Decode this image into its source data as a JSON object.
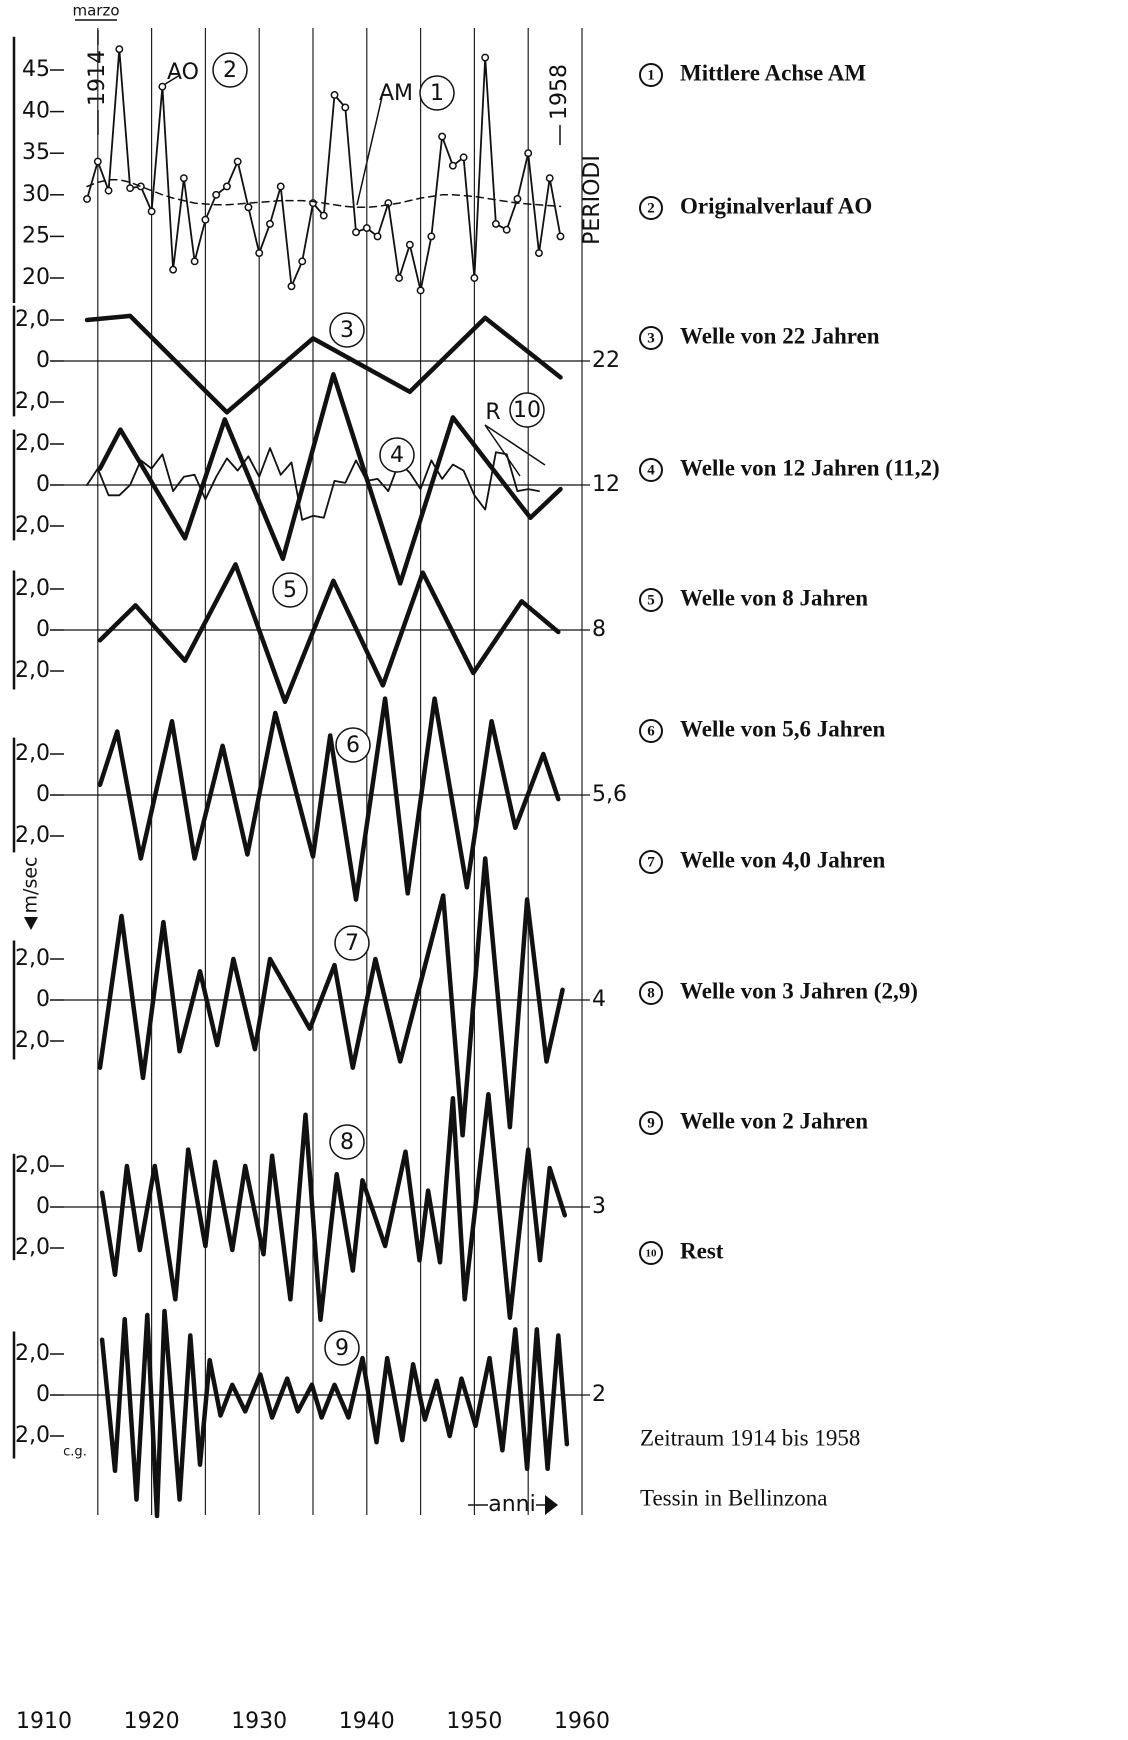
{
  "x_axis": {
    "xlim": [
      1910,
      1960
    ],
    "xticks": [
      1910,
      1920,
      1930,
      1940,
      1950,
      1960
    ],
    "xgrid": [
      1915,
      1920,
      1925,
      1930,
      1935,
      1940,
      1945,
      1950,
      1955,
      1960
    ],
    "label": "anni",
    "y_label": "m/sec",
    "month": "marzo",
    "start": "1914",
    "end": "1958",
    "period_title": "PERIODI",
    "unit_note": "c.g."
  },
  "chart_data": [
    {
      "type": "line",
      "ylim": [
        17,
        49
      ],
      "yticks": [
        20,
        25,
        30,
        35,
        40,
        45
      ],
      "labels": [
        "AO",
        "2",
        "AM",
        "1"
      ],
      "x": [
        1914,
        1915,
        1916,
        1917,
        1918,
        1919,
        1920,
        1921,
        1922,
        1923,
        1924,
        1925,
        1926,
        1927,
        1928,
        1929,
        1930,
        1931,
        1932,
        1933,
        1934,
        1935,
        1936,
        1937,
        1938,
        1939,
        1940,
        1941,
        1942,
        1943,
        1944,
        1945,
        1946,
        1947,
        1948,
        1949,
        1950,
        1951,
        1952,
        1953,
        1954,
        1955,
        1956,
        1957,
        1958
      ],
      "series": [
        {
          "style": "thin",
          "markers": true,
          "color": "#111111",
          "values": [
            29.5,
            34,
            30.5,
            47.5,
            30.8,
            31,
            28,
            43,
            21,
            32,
            22,
            27,
            30,
            31,
            34,
            28.5,
            23,
            26.5,
            31,
            19,
            22,
            29,
            27.5,
            42,
            40.5,
            25.5,
            26,
            25,
            29,
            20,
            24,
            18.5,
            25,
            37,
            33.5,
            34.5,
            20,
            46.5,
            26.5,
            25.8,
            29.5,
            35,
            23,
            32,
            25
          ]
        },
        {
          "style": "dashed",
          "color": "#111111",
          "values": [
            31,
            31.5,
            31.8,
            31.8,
            31.5,
            31,
            30.5,
            30,
            29.6,
            29.3,
            29,
            28.9,
            28.8,
            28.8,
            28.9,
            29,
            29.1,
            29.2,
            29.3,
            29.3,
            29.3,
            29.2,
            29,
            28.8,
            28.6,
            28.5,
            28.5,
            28.6,
            28.8,
            29,
            29.3,
            29.6,
            29.8,
            30,
            30,
            29.9,
            29.8,
            29.6,
            29.4,
            29.2,
            29,
            28.9,
            28.8,
            28.7,
            28.6
          ]
        }
      ]
    },
    {
      "type": "line",
      "ylim": [
        -2.7,
        2.7
      ],
      "yticks": [
        {
          "value": 2,
          "label": "2,0"
        },
        0,
        {
          "value": -2,
          "label": "2,0"
        }
      ],
      "zeroline": true,
      "period": "22",
      "labels": [
        "3"
      ],
      "x": [
        1914,
        1918,
        1927,
        1935,
        1944,
        1951,
        1958
      ],
      "series": [
        {
          "style": "thick",
          "color": "#111111",
          "values": [
            2.0,
            2.2,
            -2.5,
            1.1,
            -1.5,
            2.1,
            -0.8
          ]
        }
      ]
    },
    {
      "type": "line",
      "ylim": [
        -2.7,
        2.7
      ],
      "yticks": [
        {
          "value": 2,
          "label": "2,0"
        },
        0,
        {
          "value": -2,
          "label": "2,0"
        }
      ],
      "zeroline": true,
      "period": "12",
      "labels": [
        "4",
        "R",
        "10"
      ],
      "series": [
        {
          "style": "thick",
          "color": "#111111",
          "x": [
            1915.2,
            1917.1,
            1923.1,
            1926.8,
            1932.2,
            1936.9,
            1943.1,
            1948.0,
            1955.2,
            1958.0
          ],
          "values": [
            0.8,
            2.7,
            -2.6,
            3.2,
            -3.6,
            5.4,
            -4.8,
            3.3,
            -1.6,
            -0.2
          ]
        },
        {
          "style": "thin",
          "color": "#111111",
          "x": [
            1914,
            1915,
            1916,
            1917,
            1918,
            1919,
            1920,
            1921,
            1922,
            1923,
            1924,
            1925,
            1926,
            1927,
            1928,
            1929,
            1930,
            1931,
            1932,
            1933,
            1934,
            1935,
            1936,
            1937,
            1938,
            1939,
            1940,
            1941,
            1942,
            1943,
            1944,
            1945,
            1946,
            1947,
            1948,
            1949,
            1950,
            1951,
            1952,
            1953,
            1954,
            1955,
            1956
          ],
          "values": [
            0,
            0.8,
            -0.5,
            -0.5,
            0,
            1.2,
            0.8,
            1.5,
            -0.3,
            0.4,
            0.5,
            -0.7,
            0.4,
            1.3,
            0.7,
            1.4,
            0.4,
            1.8,
            0.5,
            1.1,
            -1.7,
            -1.5,
            -1.6,
            0.2,
            0.1,
            1.2,
            0.2,
            0.3,
            -0.3,
            1.1,
            0.6,
            -0.2,
            1.2,
            0.3,
            1.0,
            0.7,
            -0.5,
            -1.2,
            1.6,
            1.5,
            -0.3,
            -0.2,
            -0.3
          ]
        }
      ]
    },
    {
      "type": "line",
      "ylim": [
        -2.9,
        2.9
      ],
      "yticks": [
        {
          "value": 2,
          "label": "2,0"
        },
        0,
        {
          "value": -2,
          "label": "2,0"
        }
      ],
      "zeroline": true,
      "period": "8",
      "labels": [
        "5"
      ],
      "x": [
        1915.2,
        1918.5,
        1923.1,
        1927.8,
        1932.4,
        1936.9,
        1941.5,
        1945.2,
        1949.9,
        1954.4,
        1957.8
      ],
      "series": [
        {
          "style": "thick",
          "color": "#111111",
          "values": [
            -0.5,
            1.2,
            -1.5,
            3.2,
            -3.5,
            2.4,
            -2.7,
            2.8,
            -2.1,
            1.4,
            -0.1
          ]
        }
      ]
    },
    {
      "type": "line",
      "ylim": [
        -2.8,
        2.8
      ],
      "yticks": [
        {
          "value": 2,
          "label": "2,0"
        },
        0,
        {
          "value": -2,
          "label": "2,0"
        }
      ],
      "zeroline": true,
      "period": "5,6",
      "labels": [
        "6"
      ],
      "x": [
        1915.2,
        1916.8,
        1919.0,
        1921.9,
        1924.0,
        1926.6,
        1928.9,
        1931.5,
        1935.0,
        1936.6,
        1939.0,
        1941.7,
        1943.8,
        1946.3,
        1949.3,
        1951.6,
        1953.8,
        1956.4,
        1957.8
      ],
      "series": [
        {
          "style": "thick",
          "color": "#111111",
          "values": [
            0.5,
            3.1,
            -3.1,
            3.6,
            -3.1,
            2.4,
            -2.9,
            4.0,
            -3.0,
            2.9,
            -5.1,
            4.7,
            -4.8,
            4.7,
            -4.5,
            3.6,
            -1.6,
            2.0,
            -0.2
          ]
        }
      ]
    },
    {
      "type": "line",
      "ylim": [
        -2.9,
        2.9
      ],
      "yticks": [
        {
          "value": 2,
          "label": "2,0"
        },
        0,
        {
          "value": -2,
          "label": "2,0"
        }
      ],
      "zeroline": true,
      "period": "4",
      "labels": [
        "7"
      ],
      "x": [
        1915.2,
        1917.2,
        1919.2,
        1921.1,
        1922.6,
        1924.5,
        1926.1,
        1927.6,
        1929.6,
        1931.0,
        1934.7,
        1937.0,
        1938.7,
        1940.8,
        1943.1,
        1947.1,
        1948.9,
        1951.0,
        1953.3,
        1954.9,
        1956.7,
        1958.2
      ],
      "series": [
        {
          "style": "thick",
          "color": "#111111",
          "values": [
            -3.3,
            4.1,
            -3.8,
            3.8,
            -2.5,
            1.4,
            -2.2,
            2.0,
            -2.4,
            2.0,
            -1.4,
            1.7,
            -3.3,
            2.0,
            -3.0,
            5.1,
            -6.6,
            6.9,
            -6.2,
            4.9,
            -3.0,
            0.5
          ]
        }
      ]
    },
    {
      "type": "line",
      "ylim": [
        -2.6,
        2.6
      ],
      "yticks": [
        {
          "value": 2,
          "label": "2,0"
        },
        0,
        {
          "value": -2,
          "label": "2,0"
        }
      ],
      "zeroline": true,
      "period": "3",
      "labels": [
        "8"
      ],
      "x": [
        1915.4,
        1916.6,
        1917.7,
        1918.9,
        1920.3,
        1922.2,
        1923.4,
        1925.0,
        1925.9,
        1927.5,
        1928.7,
        1930.4,
        1931.2,
        1932.9,
        1934.3,
        1935.7,
        1937.2,
        1938.7,
        1939.6,
        1941.7,
        1943.6,
        1944.9,
        1945.7,
        1946.8,
        1948.0,
        1949.1,
        1951.3,
        1953.3,
        1955.0,
        1956.1,
        1957.0,
        1958.4
      ],
      "series": [
        {
          "style": "thick",
          "color": "#111111",
          "values": [
            0.7,
            -3.3,
            2.0,
            -2.1,
            2.0,
            -4.5,
            2.8,
            -1.9,
            2.2,
            -2.1,
            2.0,
            -2.3,
            2.5,
            -4.5,
            4.5,
            -5.5,
            1.6,
            -3.1,
            1.3,
            -1.9,
            2.7,
            -2.6,
            0.8,
            -2.7,
            5.3,
            -4.5,
            5.5,
            -5.4,
            2.8,
            -2.6,
            1.9,
            -0.4
          ]
        }
      ]
    },
    {
      "type": "line",
      "ylim": [
        -3.1,
        3.1
      ],
      "yticks": [
        {
          "value": 2,
          "label": "2,0"
        },
        0,
        {
          "value": -2,
          "label": "2,0"
        }
      ],
      "zeroline": true,
      "period": "2",
      "labels": [
        "9"
      ],
      "x": [
        1915.4,
        1916.6,
        1917.5,
        1918.6,
        1919.6,
        1920.5,
        1921.2,
        1922.6,
        1923.6,
        1924.5,
        1925.4,
        1926.4,
        1927.5,
        1928.7,
        1930.1,
        1931.2,
        1932.6,
        1933.6,
        1934.9,
        1935.8,
        1937.0,
        1938.3,
        1939.6,
        1940.9,
        1941.9,
        1943.3,
        1944.3,
        1945.4,
        1946.5,
        1947.7,
        1948.8,
        1950.1,
        1951.4,
        1952.6,
        1953.8,
        1954.9,
        1955.8,
        1956.8,
        1957.8,
        1958.6
      ],
      "series": [
        {
          "style": "thick",
          "color": "#111111",
          "values": [
            2.7,
            -3.7,
            3.7,
            -5.1,
            3.9,
            -5.9,
            4.1,
            -5.1,
            2.9,
            -3.4,
            1.7,
            -1.0,
            0.5,
            -0.8,
            1.0,
            -1.1,
            0.8,
            -0.8,
            0.5,
            -1.1,
            0.5,
            -1.1,
            1.8,
            -2.3,
            1.8,
            -2.2,
            1.5,
            -1.2,
            0.7,
            -2.0,
            0.8,
            -1.5,
            1.8,
            -2.7,
            3.2,
            -3.6,
            3.2,
            -3.6,
            2.9,
            -2.4
          ]
        }
      ]
    }
  ],
  "legend": [
    {
      "number": "1",
      "label": "Mittlere Achse AM"
    },
    {
      "number": "2",
      "label": "Originalverlauf AO"
    },
    {
      "number": "3",
      "label": "Welle von 22 Jahren"
    },
    {
      "number": "4",
      "label": "Welle von 12 Jahren (11,2)"
    },
    {
      "number": "5",
      "label": "Welle von 8 Jahren"
    },
    {
      "number": "6",
      "label": "Welle von 5,6 Jahren"
    },
    {
      "number": "7",
      "label": "Welle von 4,0 Jahren"
    },
    {
      "number": "8",
      "label": "Welle von 3 Jahren (2,9)"
    },
    {
      "number": "9",
      "label": "Welle von 2 Jahren"
    },
    {
      "number": "10",
      "label": "Rest"
    }
  ],
  "notes": [
    "Zeitraum 1914 bis 1958",
    "Tessin in Bellinzona"
  ]
}
